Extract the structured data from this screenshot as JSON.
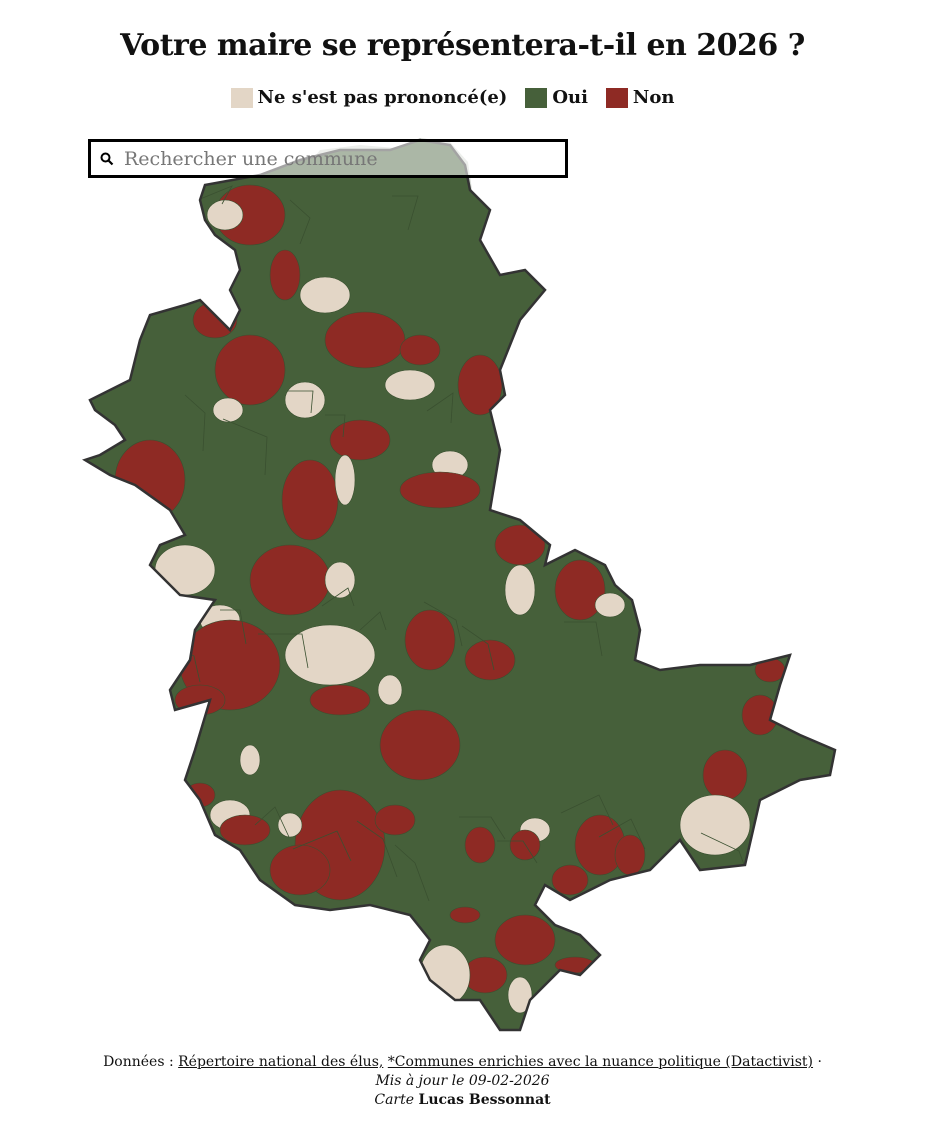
{
  "title": "Votre maire se représentera-t-il en 2026 ?",
  "legend": [
    {
      "label": "Ne s'est pas prononcé(e)",
      "color": "#e3d6c6"
    },
    {
      "label": "Oui",
      "color": "#46603a"
    },
    {
      "label": "Non",
      "color": "#8e2a24"
    }
  ],
  "search": {
    "placeholder": "Rechercher une commune",
    "value": "",
    "icon": "search-icon"
  },
  "map": {
    "outside_color": "#d8dbd6",
    "border_color": "#333333"
  },
  "footer": {
    "data_prefix": "Données :",
    "source_1": "Répertoire national des élus,",
    "source_2": "*Communes enrichies avec la nuance politique (Datactivist)",
    "separator": "·",
    "updated": "Mis à jour le 09-02-2026",
    "credit_prefix": "Carte",
    "credit_name": "Lucas Bessonnat"
  }
}
